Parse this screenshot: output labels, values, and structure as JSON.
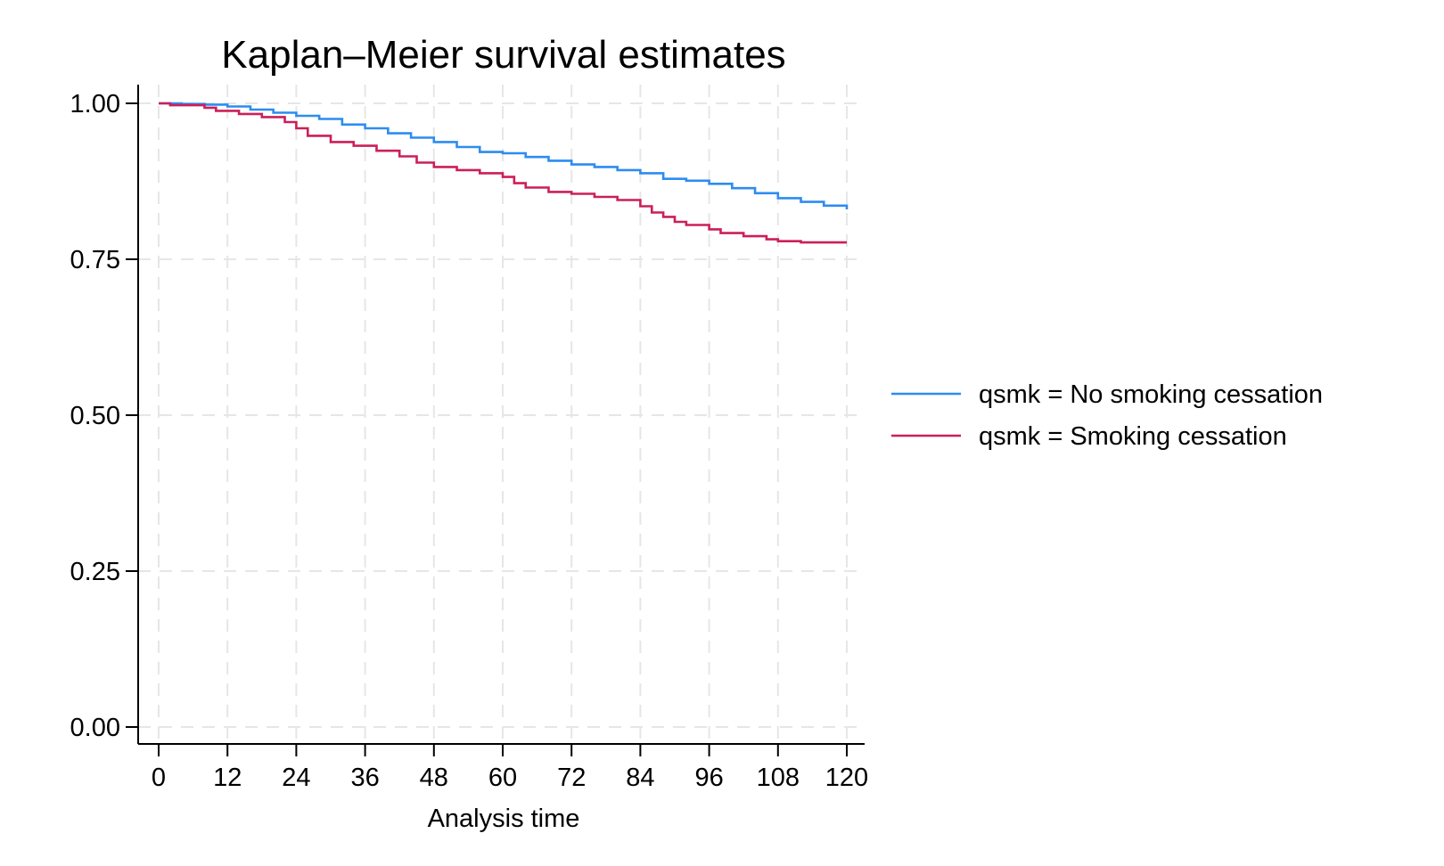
{
  "chart_data": {
    "type": "line",
    "title": "Kaplan–Meier survival estimates",
    "xlabel": "Analysis time",
    "ylabel": "",
    "xlim": [
      0,
      120
    ],
    "ylim": [
      0,
      1
    ],
    "x_ticks": [
      0,
      12,
      24,
      36,
      48,
      60,
      72,
      84,
      96,
      108,
      120
    ],
    "y_ticks": [
      0,
      0.25,
      0.5,
      0.75,
      1
    ],
    "y_tick_labels": [
      "0.00",
      "0.25",
      "0.50",
      "0.75",
      "1.00"
    ],
    "grid": true,
    "legend_position": "right",
    "step": true,
    "series": [
      {
        "name": "qsmk = No smoking cessation",
        "color": "#2d8cf0",
        "x": [
          0,
          4,
          8,
          12,
          16,
          20,
          24,
          28,
          32,
          36,
          40,
          44,
          48,
          52,
          56,
          60,
          64,
          68,
          72,
          76,
          80,
          84,
          88,
          92,
          96,
          100,
          104,
          108,
          112,
          116,
          120
        ],
        "y": [
          1.0,
          0.999,
          0.998,
          0.995,
          0.99,
          0.985,
          0.98,
          0.975,
          0.966,
          0.96,
          0.952,
          0.945,
          0.938,
          0.93,
          0.922,
          0.92,
          0.914,
          0.908,
          0.902,
          0.898,
          0.893,
          0.888,
          0.879,
          0.876,
          0.871,
          0.864,
          0.856,
          0.848,
          0.842,
          0.836,
          0.83
        ]
      },
      {
        "name": "qsmk = Smoking cessation",
        "color": "#cc1f5a",
        "x": [
          0,
          2,
          8,
          10,
          14,
          18,
          22,
          24,
          26,
          30,
          34,
          38,
          42,
          45,
          48,
          52,
          56,
          60,
          62,
          64,
          68,
          72,
          76,
          80,
          84,
          86,
          88,
          90,
          92,
          96,
          98,
          102,
          106,
          108,
          112,
          120
        ],
        "y": [
          1.0,
          0.997,
          0.993,
          0.988,
          0.983,
          0.978,
          0.97,
          0.96,
          0.948,
          0.938,
          0.932,
          0.924,
          0.915,
          0.905,
          0.898,
          0.893,
          0.888,
          0.882,
          0.872,
          0.865,
          0.858,
          0.855,
          0.85,
          0.845,
          0.835,
          0.825,
          0.818,
          0.81,
          0.805,
          0.798,
          0.792,
          0.787,
          0.782,
          0.779,
          0.777,
          0.777
        ]
      }
    ]
  }
}
